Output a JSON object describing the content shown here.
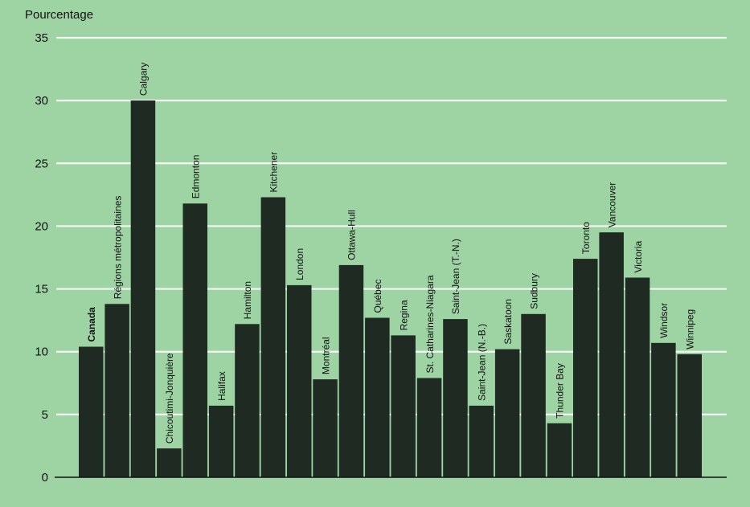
{
  "chart_data": {
    "type": "bar",
    "ylabel": "Pourcentage",
    "ylim": [
      0,
      35
    ],
    "yticks": [
      0,
      5,
      10,
      15,
      20,
      25,
      30,
      35
    ],
    "grid": true,
    "bar_color": "#1f2a22",
    "background_color": "#9ed4a4",
    "grid_color": "#f2fbf2",
    "categories": [
      "Canada",
      "Régions métropolitaines",
      "Calgary",
      "Chicoutimi-Jonquière",
      "Edmonton",
      "Halifax",
      "Hamilton",
      "Kitchener",
      "London",
      "Montréal",
      "Ottawa-Hull",
      "Québec",
      "Regina",
      "St. Catharines-Niagara",
      "Saint-Jean (T.-N.)",
      "Saint-Jean (N.-B.)",
      "Saskatoon",
      "Sudbury",
      "Thunder Bay",
      "Toronto",
      "Vancouver",
      "Victoria",
      "Windsor",
      "Winnipeg"
    ],
    "values": [
      10.4,
      13.8,
      30.0,
      2.3,
      21.8,
      5.7,
      12.2,
      22.3,
      15.3,
      7.8,
      16.9,
      12.7,
      11.3,
      7.9,
      12.6,
      5.7,
      10.2,
      13.0,
      4.3,
      17.4,
      19.5,
      15.9,
      10.7,
      9.8
    ],
    "bold_categories": [
      "Canada"
    ]
  }
}
